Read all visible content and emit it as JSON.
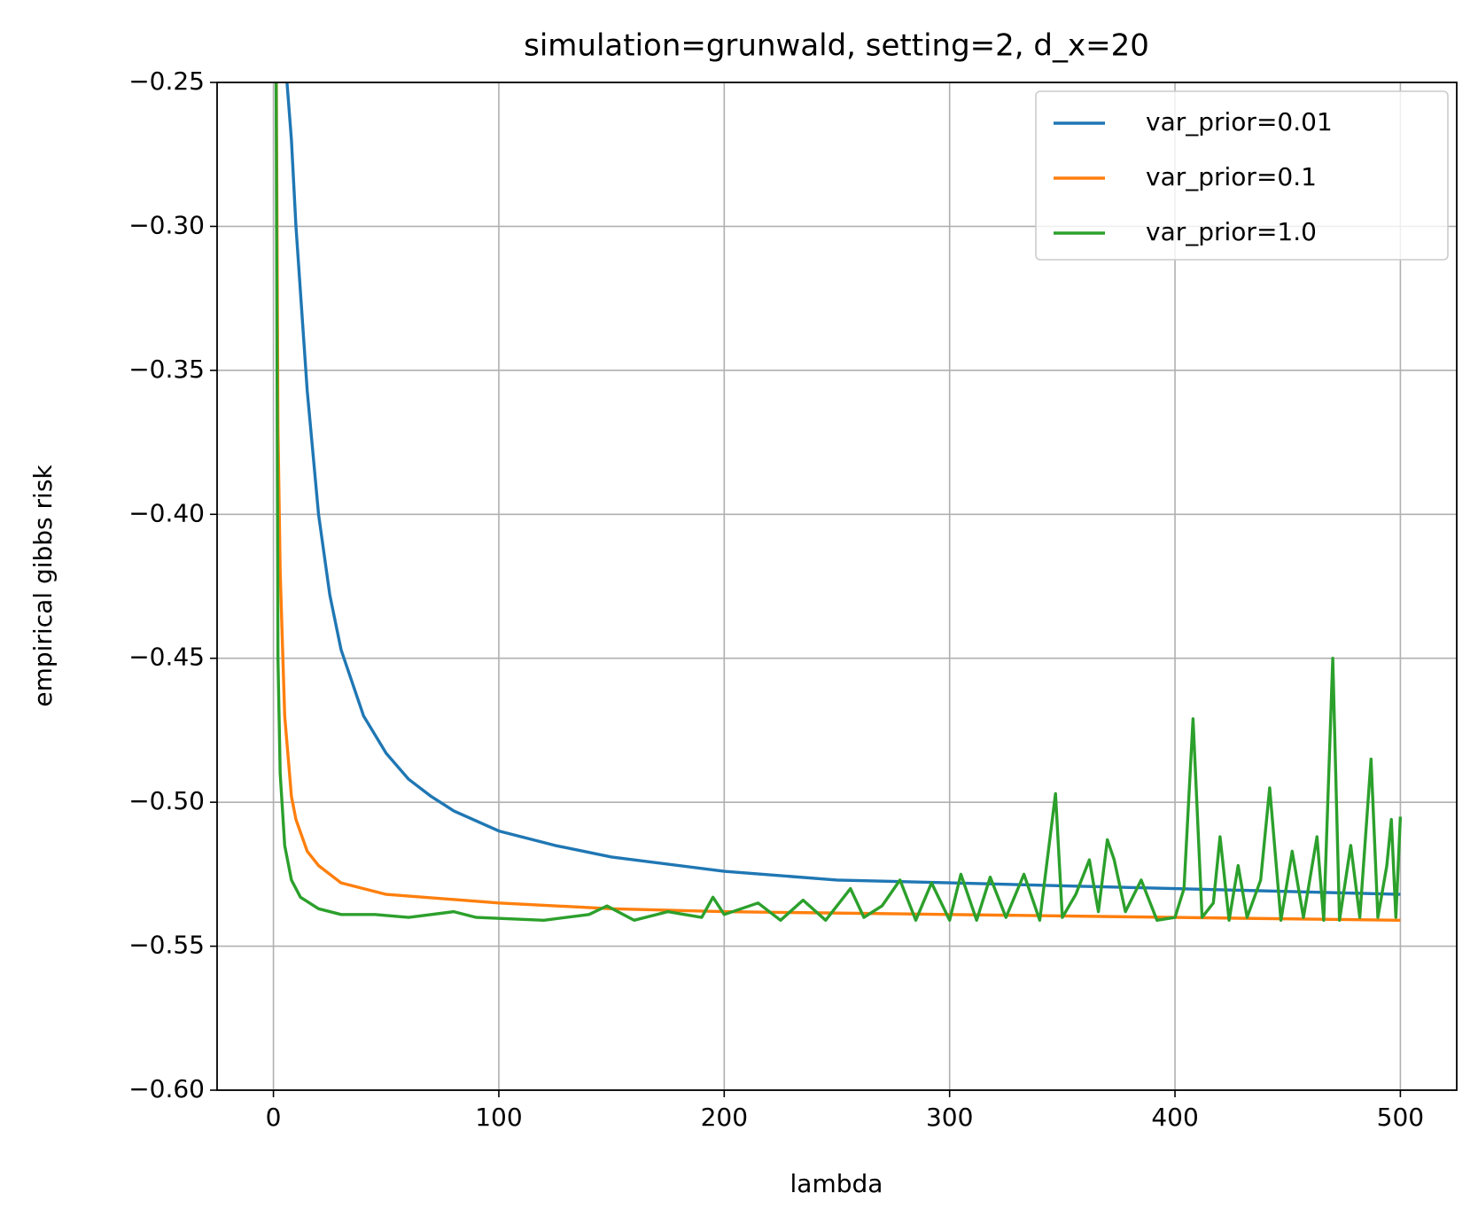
{
  "chart_data": {
    "type": "line",
    "title": "simulation=grunwald, setting=2, d_x=20",
    "x_label": "lambda",
    "y_label": "empirical gibbs risk",
    "xlim": [
      -25,
      525
    ],
    "ylim": [
      -0.6,
      -0.25
    ],
    "xticks": [
      0,
      100,
      200,
      300,
      400,
      500
    ],
    "yticks": [
      {
        "value": -0.6,
        "label": "−0.60"
      },
      {
        "value": -0.55,
        "label": "−0.55"
      },
      {
        "value": -0.5,
        "label": "−0.50"
      },
      {
        "value": -0.45,
        "label": "−0.45"
      },
      {
        "value": -0.4,
        "label": "−0.40"
      },
      {
        "value": -0.35,
        "label": "−0.35"
      },
      {
        "value": -0.3,
        "label": "−0.30"
      },
      {
        "value": -0.25,
        "label": "−0.25"
      }
    ],
    "grid": true,
    "legend": "upper right",
    "series": [
      {
        "name": "var_prior=0.01",
        "color": "#1f77b4",
        "x": [
          6,
          8,
          10,
          15,
          20,
          25,
          30,
          40,
          50,
          60,
          70,
          80,
          100,
          125,
          150,
          200,
          250,
          300,
          350,
          400,
          450,
          500
        ],
        "values": [
          -0.25,
          -0.27,
          -0.3,
          -0.357,
          -0.4,
          -0.428,
          -0.447,
          -0.47,
          -0.483,
          -0.492,
          -0.498,
          -0.503,
          -0.51,
          -0.515,
          -0.519,
          -0.524,
          -0.527,
          -0.528,
          -0.529,
          -0.53,
          -0.531,
          -0.532
        ]
      },
      {
        "name": "var_prior=0.1",
        "color": "#ff7f0e",
        "x": [
          1,
          2,
          3,
          5,
          8,
          10,
          15,
          20,
          30,
          50,
          100,
          150,
          200,
          300,
          400,
          500
        ],
        "values": [
          -0.2,
          -0.37,
          -0.42,
          -0.47,
          -0.498,
          -0.506,
          -0.517,
          -0.522,
          -0.528,
          -0.532,
          -0.535,
          -0.537,
          -0.538,
          -0.539,
          -0.54,
          -0.541
        ]
      },
      {
        "name": "var_prior=1.0",
        "color": "#2ca02c",
        "x": [
          1,
          2,
          3,
          5,
          8,
          12,
          20,
          30,
          45,
          60,
          80,
          90,
          120,
          140,
          148,
          160,
          175,
          190,
          195,
          200,
          215,
          225,
          235,
          245,
          256,
          262,
          270,
          278,
          285,
          292,
          300,
          305,
          312,
          318,
          325,
          333,
          340,
          347,
          350,
          356,
          362,
          366,
          370,
          373,
          378,
          385,
          392,
          400,
          404,
          408,
          412,
          417,
          420,
          424,
          428,
          432,
          438,
          442,
          447,
          452,
          457,
          463,
          466,
          470,
          473,
          478,
          482,
          487,
          490,
          494,
          496,
          498,
          500
        ],
        "values": [
          -0.2,
          -0.45,
          -0.49,
          -0.515,
          -0.527,
          -0.533,
          -0.537,
          -0.539,
          -0.539,
          -0.54,
          -0.538,
          -0.54,
          -0.541,
          -0.539,
          -0.536,
          -0.541,
          -0.538,
          -0.54,
          -0.533,
          -0.539,
          -0.535,
          -0.541,
          -0.534,
          -0.541,
          -0.53,
          -0.54,
          -0.536,
          -0.527,
          -0.541,
          -0.528,
          -0.541,
          -0.525,
          -0.541,
          -0.526,
          -0.54,
          -0.525,
          -0.541,
          -0.497,
          -0.54,
          -0.532,
          -0.52,
          -0.538,
          -0.513,
          -0.52,
          -0.538,
          -0.527,
          -0.541,
          -0.54,
          -0.53,
          -0.471,
          -0.54,
          -0.535,
          -0.512,
          -0.541,
          -0.522,
          -0.54,
          -0.527,
          -0.495,
          -0.541,
          -0.517,
          -0.54,
          -0.512,
          -0.541,
          -0.45,
          -0.541,
          -0.515,
          -0.54,
          -0.485,
          -0.54,
          -0.522,
          -0.506,
          -0.54,
          -0.505
        ]
      }
    ]
  }
}
